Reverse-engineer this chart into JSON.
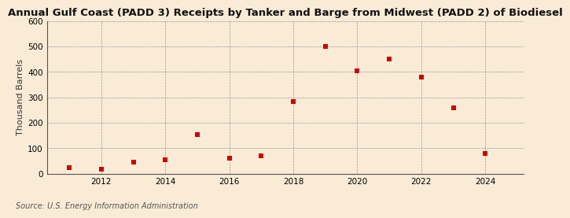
{
  "title": "Annual Gulf Coast (PADD 3) Receipts by Tanker and Barge from Midwest (PADD 2) of Biodiesel",
  "ylabel": "Thousand Barrels",
  "source": "Source: U.S. Energy Information Administration",
  "background_color": "#faebd7",
  "plot_background_color": "#faebd7",
  "marker_color": "#cc0000",
  "years": [
    2011,
    2012,
    2013,
    2014,
    2015,
    2016,
    2017,
    2018,
    2019,
    2020,
    2021,
    2022,
    2023,
    2024
  ],
  "values": [
    25,
    18,
    45,
    55,
    155,
    62,
    70,
    285,
    500,
    405,
    450,
    380,
    258,
    78
  ],
  "ylim": [
    0,
    600
  ],
  "yticks": [
    0,
    100,
    200,
    300,
    400,
    500,
    600
  ],
  "xlim": [
    2010.3,
    2025.2
  ],
  "xticks": [
    2012,
    2014,
    2016,
    2018,
    2020,
    2022,
    2024
  ],
  "title_fontsize": 9.5,
  "label_fontsize": 8,
  "tick_fontsize": 7.5,
  "source_fontsize": 7,
  "marker_size": 4
}
